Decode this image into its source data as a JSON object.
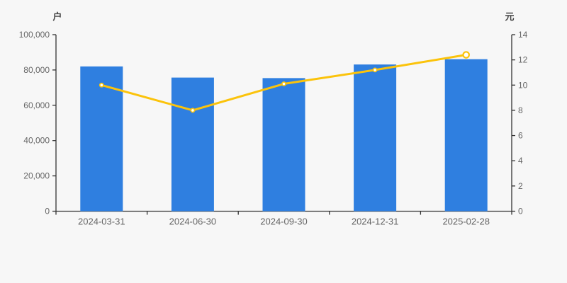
{
  "colors": {
    "background": "#f7f7f7",
    "bar": "#2f7fe0",
    "line": "#fbc30b",
    "marker_fill": "#ffffff",
    "axis": "#333333",
    "tick_label": "#666666",
    "unit_label": "#444444"
  },
  "chart_data": {
    "type": "bar",
    "title": "",
    "categories": [
      "2024-03-31",
      "2024-06-30",
      "2024-09-30",
      "2024-12-31",
      "2025-02-28"
    ],
    "series": [
      {
        "name": "户",
        "type": "bar",
        "axis": "left",
        "values": [
          82000,
          75700,
          75400,
          83100,
          86100
        ]
      },
      {
        "name": "元",
        "type": "line",
        "axis": "right",
        "values": [
          10.0,
          8.0,
          10.1,
          11.2,
          12.4
        ]
      }
    ],
    "left_axis": {
      "title": "户",
      "range": [
        0,
        100000
      ],
      "tick_labels_top_to_bottom": [
        "100,000",
        "80,000",
        "60,000",
        "40,000",
        "20,000",
        "0"
      ]
    },
    "right_axis": {
      "title": "元",
      "range": [
        0,
        14
      ],
      "tick_labels_top_to_bottom": [
        "14",
        "12",
        "10",
        "8",
        "6",
        "4",
        "2",
        "0"
      ]
    },
    "x_axis": {
      "labels": [
        "2024-03-31",
        "2024-06-30",
        "2024-09-30",
        "2024-12-31",
        "2025-02-28"
      ]
    },
    "layout": {
      "grid": false,
      "legend": "none",
      "last_line_point_emphasized": true
    }
  }
}
